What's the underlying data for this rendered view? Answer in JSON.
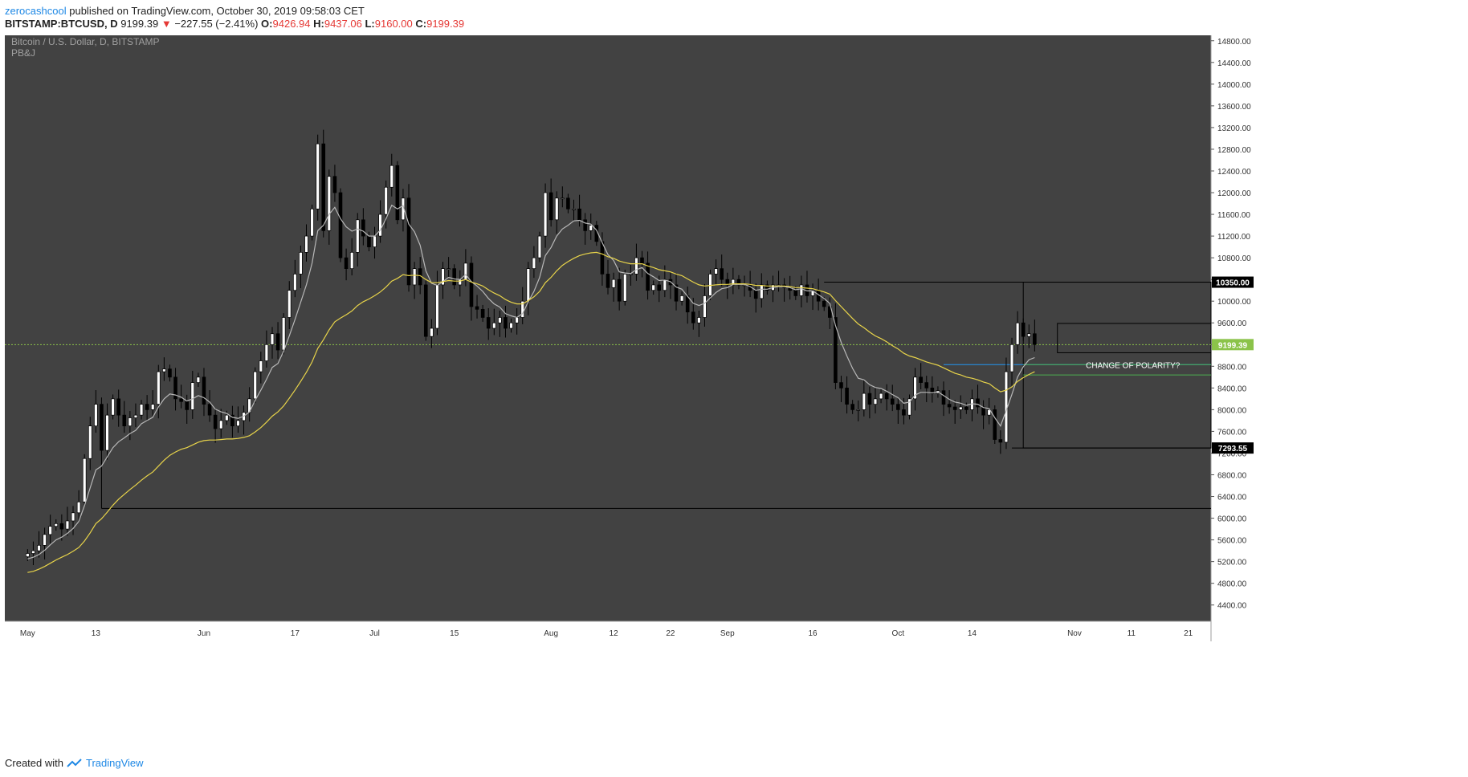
{
  "header": {
    "author": "zerocashcool",
    "published_text": "published on TradingView.com, October 30, 2019 09:58:03 CET",
    "symbol": "BITSTAMP:BTCUSD, D",
    "last": "9199.39",
    "change": "−227.55 (−2.41%)",
    "o_label": "O:",
    "o_value": "9426.94",
    "h_label": "H:",
    "h_value": "9437.06",
    "l_label": "L:",
    "l_value": "9160.00",
    "c_label": "C:",
    "c_value": "9199.39",
    "down_arrow": "▼"
  },
  "footer": {
    "created_with": "Created with",
    "brand": "TradingView"
  },
  "colors": {
    "background": "#424242",
    "up": "#ffffff",
    "down": "#000000",
    "ma_fast": "#b8b8b8",
    "ma_slow": "#e8d44a",
    "price_line": "#8bc34a",
    "polarity_blue": "#2196f3",
    "polarity_green": "#4caf50"
  },
  "chart_data": {
    "type": "candlestick",
    "title": "Bitcoin / U.S. Dollar, D, BITSTAMP",
    "subtitle": "PB&J",
    "grid": false,
    "ylim": [
      4100,
      14900
    ],
    "y_ticks": [
      4400,
      4800,
      5200,
      5600,
      6000,
      6400,
      6800,
      7200,
      7600,
      8000,
      8400,
      8800,
      9200,
      9600,
      10000,
      10400,
      10800,
      11200,
      11600,
      12000,
      12400,
      12800,
      13200,
      13600,
      14000,
      14400,
      14800
    ],
    "y_tick_suffix": ".00",
    "x_ticks": [
      {
        "label": "May",
        "day": 0
      },
      {
        "label": "13",
        "day": 12
      },
      {
        "label": "Jun",
        "day": 31
      },
      {
        "label": "17",
        "day": 47
      },
      {
        "label": "Jul",
        "day": 61
      },
      {
        "label": "15",
        "day": 75
      },
      {
        "label": "Aug",
        "day": 92
      },
      {
        "label": "12",
        "day": 103
      },
      {
        "label": "22",
        "day": 113
      },
      {
        "label": "Sep",
        "day": 123
      },
      {
        "label": "16",
        "day": 138
      },
      {
        "label": "Oct",
        "day": 153
      },
      {
        "label": "14",
        "day": 166
      },
      {
        "label": "Nov",
        "day": 184
      },
      {
        "label": "11",
        "day": 194
      },
      {
        "label": "21",
        "day": 204
      }
    ],
    "x_range_days": [
      -4,
      208
    ],
    "closes": [
      5350,
      5400,
      5500,
      5700,
      5850,
      5900,
      5800,
      5950,
      6100,
      6300,
      7100,
      7700,
      8100,
      7250,
      7900,
      8200,
      7900,
      7700,
      7850,
      7900,
      8100,
      8000,
      8100,
      8700,
      8750,
      8600,
      8200,
      8150,
      8000,
      8500,
      8600,
      8100,
      7900,
      7650,
      7800,
      7900,
      7700,
      7800,
      7950,
      8200,
      8700,
      8900,
      9200,
      9400,
      9100,
      9700,
      10200,
      10500,
      10900,
      11200,
      11700,
      12900,
      11300,
      12300,
      12000,
      10800,
      10600,
      10900,
      11500,
      11200,
      11000,
      11200,
      11600,
      12100,
      12500,
      11500,
      11900,
      10300,
      10600,
      10300,
      9350,
      9500,
      10300,
      10600,
      10600,
      10300,
      10400,
      10700,
      9900,
      9850,
      9700,
      9500,
      9600,
      9700,
      9500,
      9600,
      9700,
      10000,
      10600,
      10800,
      11200,
      12000,
      11500,
      11900,
      11900,
      11700,
      11700,
      11500,
      11300,
      11400,
      11100,
      10500,
      10250,
      10400,
      10000,
      10500,
      10500,
      10800,
      10700,
      10200,
      10300,
      10200,
      10400,
      10300,
      10000,
      10100,
      9800,
      9600,
      9700,
      10100,
      10500,
      10600,
      10400,
      10300,
      10400,
      10300,
      10300,
      10200,
      10050,
      10300,
      10200,
      10300,
      10300,
      10250,
      10200,
      10100,
      10300,
      10100,
      10200,
      10000,
      9900,
      9700,
      8500,
      8400,
      8100,
      8000,
      8000,
      8300,
      8100,
      8200,
      8300,
      8200,
      8100,
      8000,
      7900,
      8200,
      8600,
      8500,
      8400,
      8300,
      8350,
      8100,
      8050,
      8000,
      8050,
      8000,
      8200,
      8050,
      7900,
      8000,
      7450,
      7400,
      8700,
      9200,
      9600,
      9350,
      9400,
      9199
    ],
    "ma_fast": [
      5250,
      5280,
      5330,
      5410,
      5510,
      5600,
      5650,
      5720,
      5810,
      5940,
      6230,
      6560,
      6890,
      6960,
      7130,
      7300,
      7410,
      7480,
      7560,
      7620,
      7740,
      7800,
      7860,
      8050,
      8200,
      8290,
      8270,
      8230,
      8160,
      8200,
      8260,
      8220,
      8140,
      8010,
      7960,
      7930,
      7860,
      7840,
      7880,
      7960,
      8170,
      8360,
      8560,
      8780,
      8850,
      9080,
      9360,
      9660,
      9980,
      10300,
      10700,
      11300,
      11400,
      11600,
      11730,
      11520,
      11370,
      11290,
      11330,
      11290,
      11200,
      11200,
      11310,
      11520,
      11770,
      11700,
      11760,
      11420,
      11280,
      11030,
      10560,
      10330,
      10290,
      10360,
      10440,
      10410,
      10400,
      10490,
      10360,
      10280,
      10180,
      10050,
      9950,
      9890,
      9770,
      9730,
      9700,
      9770,
      9990,
      10180,
      10440,
      10840,
      10990,
      11200,
      11330,
      11400,
      11480,
      11490,
      11440,
      11420,
      11310,
      11080,
      10860,
      10750,
      10540,
      10520,
      10510,
      10580,
      10620,
      10510,
      10450,
      10380,
      10390,
      10360,
      10260,
      10220,
      10090,
      9960,
      9920,
      9960,
      10060,
      10160,
      10230,
      10250,
      10310,
      10310,
      10310,
      10270,
      10200,
      10220,
      10220,
      10250,
      10270,
      10270,
      10250,
      10210,
      10230,
      10190,
      10190,
      10120,
      10050,
      9960,
      9550,
      9240,
      8990,
      8760,
      8580,
      8550,
      8460,
      8410,
      8390,
      8340,
      8280,
      8220,
      8120,
      8140,
      8270,
      8320,
      8320,
      8310,
      8330,
      8260,
      8190,
      8140,
      8120,
      8080,
      8110,
      8100,
      8040,
      8020,
      7850,
      7700,
      7980,
      8280,
      8600,
      8790,
      8920,
      8960
    ],
    "ma_slow": [
      5000,
      5020,
      5060,
      5110,
      5170,
      5230,
      5280,
      5330,
      5390,
      5460,
      5580,
      5730,
      5900,
      5990,
      6110,
      6240,
      6350,
      6440,
      6530,
      6610,
      6700,
      6780,
      6850,
      6960,
      7070,
      7160,
      7220,
      7270,
      7300,
      7350,
      7400,
      7430,
      7440,
      7440,
      7450,
      7460,
      7460,
      7470,
      7490,
      7520,
      7590,
      7670,
      7770,
      7880,
      7960,
      8070,
      8210,
      8360,
      8520,
      8690,
      8880,
      9130,
      9290,
      9470,
      9620,
      9690,
      9750,
      9820,
      9920,
      9990,
      10040,
      10100,
      10170,
      10260,
      10370,
      10420,
      10490,
      10470,
      10480,
      10470,
      10400,
      10340,
      10340,
      10360,
      10380,
      10370,
      10370,
      10400,
      10350,
      10320,
      10280,
      10210,
      10150,
      10100,
      10030,
      9980,
      9950,
      9950,
      10010,
      10080,
      10180,
      10340,
      10440,
      10560,
      10660,
      10730,
      10790,
      10840,
      10870,
      10890,
      10900,
      10870,
      10820,
      10790,
      10740,
      10710,
      10690,
      10690,
      10690,
      10650,
      10620,
      10580,
      10560,
      10540,
      10500,
      10470,
      10410,
      10350,
      10300,
      10280,
      10290,
      10300,
      10310,
      10310,
      10320,
      10320,
      10320,
      10310,
      10290,
      10290,
      10280,
      10280,
      10280,
      10280,
      10270,
      10250,
      10250,
      10240,
      10230,
      10200,
      10170,
      10130,
      10010,
      9900,
      9790,
      9680,
      9580,
      9510,
      9430,
      9360,
      9310,
      9250,
      9180,
      9120,
      9040,
      8990,
      8960,
      8920,
      8880,
      8850,
      8820,
      8770,
      8720,
      8670,
      8640,
      8600,
      8580,
      8550,
      8510,
      8480,
      8400,
      8330,
      8360,
      8420,
      8520,
      8590,
      8650,
      8700
    ],
    "current_price": 9199.39,
    "levels": [
      {
        "label": "10350.00",
        "value": 10350,
        "from_day": 140
      },
      {
        "label": "7293.55",
        "value": 7293.55,
        "from_day": 173
      },
      {
        "label": "9199.39",
        "value": 9199.39,
        "from_day": -4,
        "kind": "current"
      }
    ],
    "support_line": {
      "value": 6180,
      "from_day": 13
    },
    "zones": [
      {
        "from_day": 175,
        "to_day": 208,
        "top": 10350,
        "bottom": 7293.55
      },
      {
        "from_day": 181,
        "to_day": 208,
        "top": 9590,
        "bottom": 9050
      }
    ],
    "polarity_zone": {
      "from_day": 161,
      "to_day": 208,
      "top": 8830,
      "bottom": 8640,
      "label": "CHANGE OF POLARITY?"
    }
  }
}
